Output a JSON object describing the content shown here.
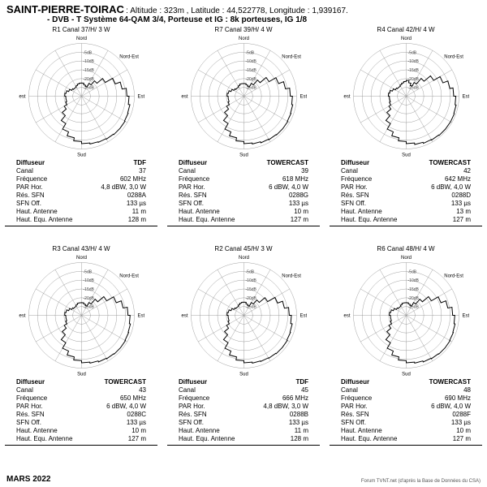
{
  "header": {
    "place": "SAINT-PIERRE-TOIRAC",
    "altitude_label": "Altitude :",
    "altitude": "323m ,",
    "lat_label": "Latitude :",
    "lat": "44,522778,",
    "lon_label": "Longitude :",
    "lon": "1,939167.",
    "system": "- DVB - T    Système 64-QAM 3/4,  Porteuse et IG : 8k porteuses, IG 1/8"
  },
  "footer": {
    "date": "MARS 2022",
    "credit": "Forum TVNT.net (d'après la Base de Données du CSA)"
  },
  "compass": {
    "n": "Nord",
    "e": "Est",
    "s": "Sud",
    "w": "Ouest",
    "ne": "Nord-Est"
  },
  "rings_db": [
    -5,
    -10,
    -15,
    -20,
    -25
  ],
  "info_keys": [
    "Diffuseur",
    "Canal",
    "Fréquence",
    "PAR Hor.",
    "Rés. SFN",
    "SFN Off.",
    "Haut. Antenne",
    "Haut. Equ. Antenne"
  ],
  "panels": [
    {
      "label": "R1  Canal 37/H/  3 W",
      "diffuseur": "TDF",
      "canal": "37",
      "freq": "602 MHz",
      "par": "4,8 dBW, 3,0 W",
      "sfn": "0288A",
      "sfnoff": "133 µs",
      "haut": "11 m",
      "hauteq": "128 m",
      "pattern": [
        0.25,
        0.22,
        0.2,
        0.28,
        0.38,
        0.52,
        0.68,
        0.78,
        0.86,
        0.9,
        0.93,
        0.94,
        0.95,
        0.95,
        0.94,
        0.93,
        0.92,
        0.9,
        0.86,
        0.8,
        0.72,
        0.6,
        0.48,
        0.38,
        0.32,
        0.3,
        0.3,
        0.32,
        0.3,
        0.26,
        0.22,
        0.2,
        0.2,
        0.22,
        0.24,
        0.25
      ]
    },
    {
      "label": "R7  Canal 39/H/  4 W",
      "diffuseur": "TOWERCAST",
      "canal": "39",
      "freq": "618 MHz",
      "par": "6 dBW, 4,0 W",
      "sfn": "0288G",
      "sfnoff": "133 µs",
      "haut": "10 m",
      "hauteq": "127 m",
      "pattern": [
        0.24,
        0.22,
        0.2,
        0.28,
        0.4,
        0.55,
        0.7,
        0.8,
        0.88,
        0.92,
        0.94,
        0.95,
        0.96,
        0.96,
        0.95,
        0.94,
        0.92,
        0.9,
        0.86,
        0.8,
        0.72,
        0.6,
        0.48,
        0.38,
        0.32,
        0.3,
        0.3,
        0.32,
        0.3,
        0.26,
        0.22,
        0.2,
        0.2,
        0.22,
        0.24,
        0.24
      ]
    },
    {
      "label": "R4  Canal 42/H/  4 W",
      "diffuseur": "TOWERCAST",
      "canal": "42",
      "freq": "642 MHz",
      "par": "6 dBW, 4,0 W",
      "sfn": "0288D",
      "sfnoff": "133 µs",
      "haut": "13 m",
      "hauteq": "127 m",
      "pattern": [
        0.3,
        0.26,
        0.22,
        0.3,
        0.44,
        0.6,
        0.74,
        0.84,
        0.9,
        0.94,
        0.96,
        0.97,
        0.97,
        0.97,
        0.96,
        0.95,
        0.93,
        0.9,
        0.86,
        0.8,
        0.72,
        0.6,
        0.48,
        0.38,
        0.34,
        0.32,
        0.32,
        0.34,
        0.32,
        0.28,
        0.24,
        0.22,
        0.22,
        0.24,
        0.26,
        0.28
      ]
    },
    {
      "label": "R3  Canal 43/H/  4 W",
      "diffuseur": "TOWERCAST",
      "canal": "43",
      "freq": "650 MHz",
      "par": "6 dBW, 4,0 W",
      "sfn": "0288C",
      "sfnoff": "133 µs",
      "haut": "10 m",
      "hauteq": "127 m",
      "pattern": [
        0.24,
        0.22,
        0.2,
        0.28,
        0.4,
        0.55,
        0.7,
        0.8,
        0.88,
        0.92,
        0.94,
        0.95,
        0.96,
        0.96,
        0.95,
        0.94,
        0.92,
        0.9,
        0.86,
        0.8,
        0.72,
        0.6,
        0.48,
        0.38,
        0.32,
        0.3,
        0.3,
        0.32,
        0.3,
        0.26,
        0.22,
        0.2,
        0.2,
        0.22,
        0.24,
        0.24
      ]
    },
    {
      "label": "R2  Canal 45/H/  3 W",
      "diffuseur": "TDF",
      "canal": "45",
      "freq": "666 MHz",
      "par": "4,8 dBW, 3,0 W",
      "sfn": "0288B",
      "sfnoff": "133 µs",
      "haut": "11 m",
      "hauteq": "128 m",
      "pattern": [
        0.25,
        0.22,
        0.2,
        0.28,
        0.38,
        0.52,
        0.68,
        0.78,
        0.86,
        0.9,
        0.93,
        0.94,
        0.95,
        0.95,
        0.94,
        0.93,
        0.92,
        0.9,
        0.86,
        0.8,
        0.72,
        0.6,
        0.48,
        0.38,
        0.32,
        0.3,
        0.3,
        0.32,
        0.3,
        0.26,
        0.22,
        0.2,
        0.2,
        0.22,
        0.24,
        0.25
      ]
    },
    {
      "label": "R6  Canal 48/H/  4 W",
      "diffuseur": "TOWERCAST",
      "canal": "48",
      "freq": "690 MHz",
      "par": "6 dBW, 4,0 W",
      "sfn": "0288F",
      "sfnoff": "133 µs",
      "haut": "10 m",
      "hauteq": "127 m",
      "pattern": [
        0.24,
        0.22,
        0.2,
        0.28,
        0.4,
        0.55,
        0.7,
        0.8,
        0.88,
        0.92,
        0.94,
        0.95,
        0.96,
        0.96,
        0.95,
        0.94,
        0.92,
        0.9,
        0.86,
        0.8,
        0.72,
        0.6,
        0.48,
        0.38,
        0.32,
        0.3,
        0.3,
        0.32,
        0.3,
        0.26,
        0.22,
        0.2,
        0.2,
        0.22,
        0.24,
        0.24
      ]
    }
  ]
}
